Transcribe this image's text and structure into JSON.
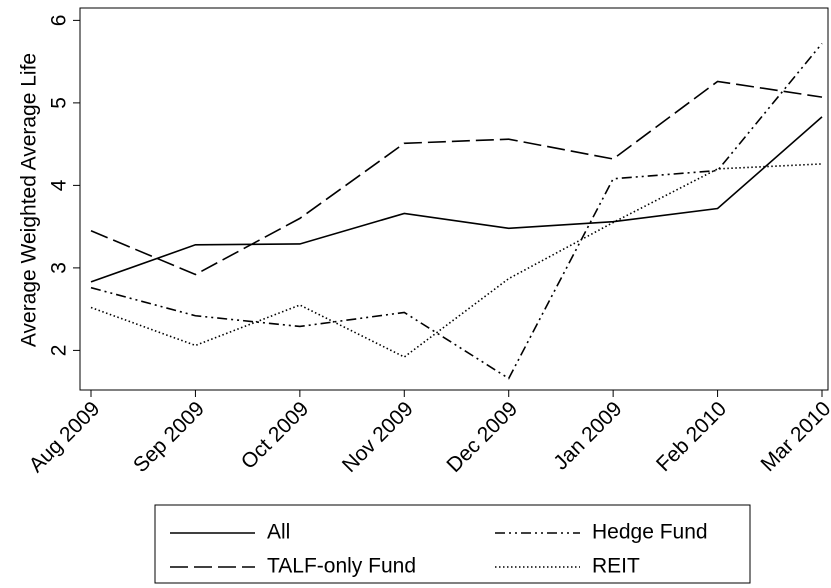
{
  "chart_data": {
    "type": "line",
    "y_label": "Average Weighted Average Life",
    "categories": [
      "Aug 2009",
      "Sep 2009",
      "Oct 2009",
      "Nov 2009",
      "Dec 2009",
      "Jan 2009",
      "Feb 2010",
      "Mar 2010"
    ],
    "series": [
      {
        "name": "All",
        "color": "#000000",
        "dash": "none",
        "values": [
          2.83,
          3.28,
          3.29,
          3.66,
          3.48,
          3.56,
          3.72,
          4.83
        ]
      },
      {
        "name": "Hedge Fund",
        "color": "#000000",
        "dash": "10 4 2 4 2 4",
        "values": [
          2.76,
          2.42,
          2.29,
          2.46,
          1.66,
          4.08,
          4.18,
          5.72
        ]
      },
      {
        "name": "TALF-only Fund",
        "color": "#000000",
        "dash": "18 6",
        "values": [
          3.45,
          2.92,
          3.6,
          4.51,
          4.56,
          4.32,
          5.26,
          5.07
        ]
      },
      {
        "name": "REIT",
        "color": "#000000",
        "dash": "1.5 2.5",
        "values": [
          2.52,
          2.06,
          2.55,
          1.92,
          2.87,
          3.55,
          4.2,
          4.26
        ]
      }
    ],
    "ylim": [
      1.52,
      6.15
    ],
    "yticks": [
      2,
      3,
      4,
      5,
      6
    ],
    "grid": false,
    "legend": "bottom"
  }
}
